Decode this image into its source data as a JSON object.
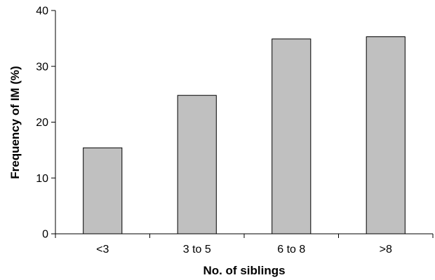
{
  "chart_data": {
    "type": "bar",
    "title": "",
    "xlabel": "No. of siblings",
    "ylabel": "Frequency of IM (%)",
    "categories": [
      "<3",
      "3 to 5",
      "6 to 8",
      ">8"
    ],
    "values": [
      15.4,
      24.8,
      34.9,
      35.3
    ],
    "ylim": [
      0,
      40
    ],
    "yticks": [
      0,
      10,
      20,
      30,
      40
    ],
    "grid": false,
    "legend": "none",
    "bar_color": "#c0c0c0",
    "bar_edge_color": "#000000"
  }
}
